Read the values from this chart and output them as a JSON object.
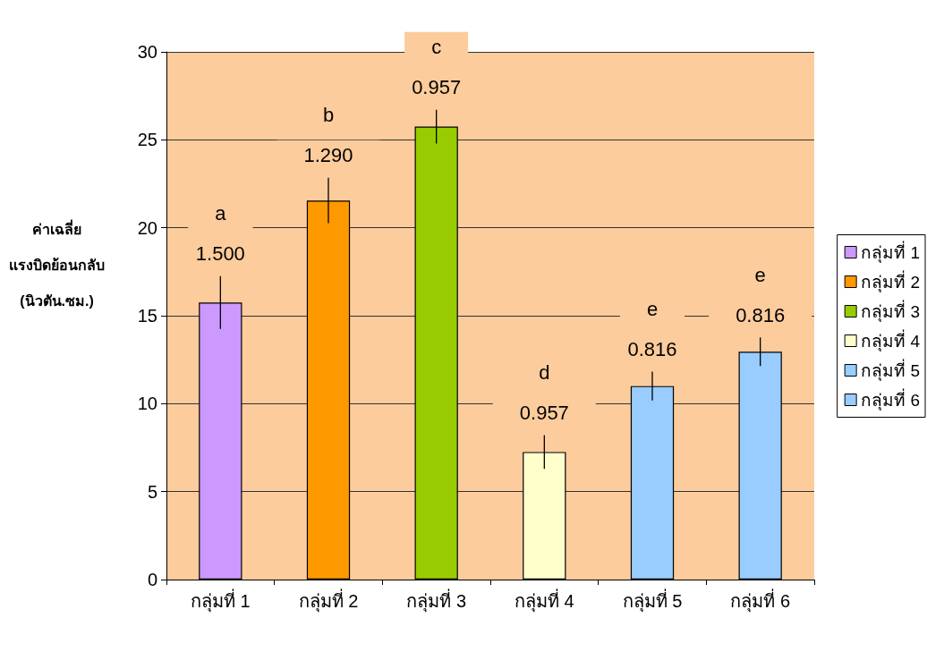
{
  "chart_data": {
    "type": "bar",
    "ylabel": "ค่าเฉลี่ย\nแรงบิดย้อนกลับ\n(นิวตัน.ซม.)",
    "categories": [
      "กลุ่มที่ 1",
      "กลุ่มที่ 2",
      "กลุ่มที่ 3",
      "กลุ่มที่ 4",
      "กลุ่มที่ 5",
      "กลุ่มที่ 6"
    ],
    "stacked": true,
    "series": [
      {
        "name": "กลุ่มที่ 1",
        "color": "#cc99ff",
        "values": [
          15.75,
          null,
          null,
          null,
          null,
          null
        ],
        "errors": [
          1.5,
          null,
          null,
          null,
          null,
          null
        ]
      },
      {
        "name": "กลุ่มที่ 2",
        "color": "#ff9900",
        "values": [
          null,
          21.55,
          null,
          null,
          null,
          null
        ],
        "errors": [
          null,
          1.29,
          null,
          null,
          null,
          null
        ]
      },
      {
        "name": "กลุ่มที่ 3",
        "color": "#99cc00",
        "values": [
          null,
          null,
          25.75,
          null,
          null,
          null
        ],
        "errors": [
          null,
          null,
          0.957,
          null,
          null,
          null
        ]
      },
      {
        "name": "กลุ่มที่ 4",
        "color": "#ffffcc",
        "values": [
          null,
          null,
          null,
          7.25,
          null,
          null
        ],
        "errors": [
          null,
          null,
          null,
          0.957,
          null,
          null
        ]
      },
      {
        "name": "กลุ่มที่ 5",
        "color": "#99ccff",
        "values": [
          null,
          null,
          null,
          null,
          11.0,
          null
        ],
        "errors": [
          null,
          null,
          null,
          null,
          0.816,
          null
        ]
      },
      {
        "name": "กลุ่มที่ 6",
        "color": "#99ccff",
        "values": [
          null,
          null,
          null,
          null,
          null,
          12.95
        ],
        "errors": [
          null,
          null,
          null,
          null,
          null,
          0.816
        ]
      }
    ],
    "ylim": [
      0,
      30
    ],
    "yticks": [
      0,
      5,
      10,
      15,
      20,
      25,
      30
    ],
    "grid": "y",
    "legend": "right",
    "annotations": [
      "a",
      {
        "text": "1.500",
        "x": "กลุ่มที่ 1",
        "y": 15.75
      },
      "b",
      {
        "text": "1.290",
        "x": "กลุ่มที่ 2",
        "y": 21.55
      },
      "c",
      {
        "text": "0.957",
        "x": "กลุ่มที่ 3",
        "y": 25.75
      },
      "d",
      {
        "text": "0.957",
        "x": "กลุ่มที่ 4",
        "y": 7.25
      },
      "e",
      {
        "text": "0.816",
        "x": "กลุ่มที่ 5",
        "y": 11.0
      },
      "e",
      {
        "text": "0.816",
        "x": "กลุ่มที่ 6",
        "y": 12.95
      }
    ]
  }
}
